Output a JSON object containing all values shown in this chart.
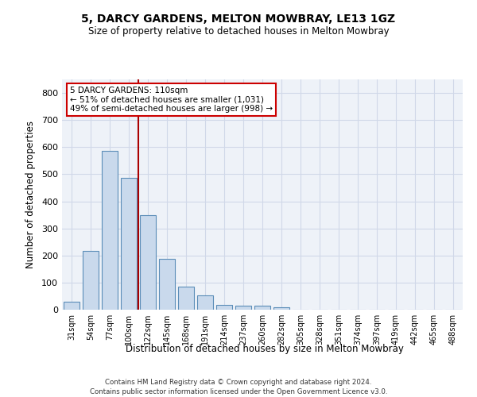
{
  "title1": "5, DARCY GARDENS, MELTON MOWBRAY, LE13 1GZ",
  "title2": "Size of property relative to detached houses in Melton Mowbray",
  "xlabel": "Distribution of detached houses by size in Melton Mowbray",
  "ylabel": "Number of detached properties",
  "categories": [
    "31sqm",
    "54sqm",
    "77sqm",
    "100sqm",
    "122sqm",
    "145sqm",
    "168sqm",
    "191sqm",
    "214sqm",
    "237sqm",
    "260sqm",
    "282sqm",
    "305sqm",
    "328sqm",
    "351sqm",
    "374sqm",
    "397sqm",
    "419sqm",
    "442sqm",
    "465sqm",
    "488sqm"
  ],
  "values": [
    30,
    218,
    585,
    488,
    350,
    188,
    85,
    52,
    18,
    15,
    15,
    8,
    0,
    0,
    0,
    0,
    0,
    0,
    0,
    0,
    0
  ],
  "bar_color": "#c9d9ec",
  "bar_edge_color": "#5b8db8",
  "red_line_x": 3.5,
  "annotation_text": "5 DARCY GARDENS: 110sqm\n← 51% of detached houses are smaller (1,031)\n49% of semi-detached houses are larger (998) →",
  "annotation_box_color": "#ffffff",
  "annotation_box_edge": "#cc0000",
  "red_line_color": "#aa0000",
  "grid_color": "#d0d8e8",
  "background_color": "#eef2f8",
  "ylim": [
    0,
    850
  ],
  "yticks": [
    0,
    100,
    200,
    300,
    400,
    500,
    600,
    700,
    800
  ],
  "footer1": "Contains HM Land Registry data © Crown copyright and database right 2024.",
  "footer2": "Contains public sector information licensed under the Open Government Licence v3.0."
}
